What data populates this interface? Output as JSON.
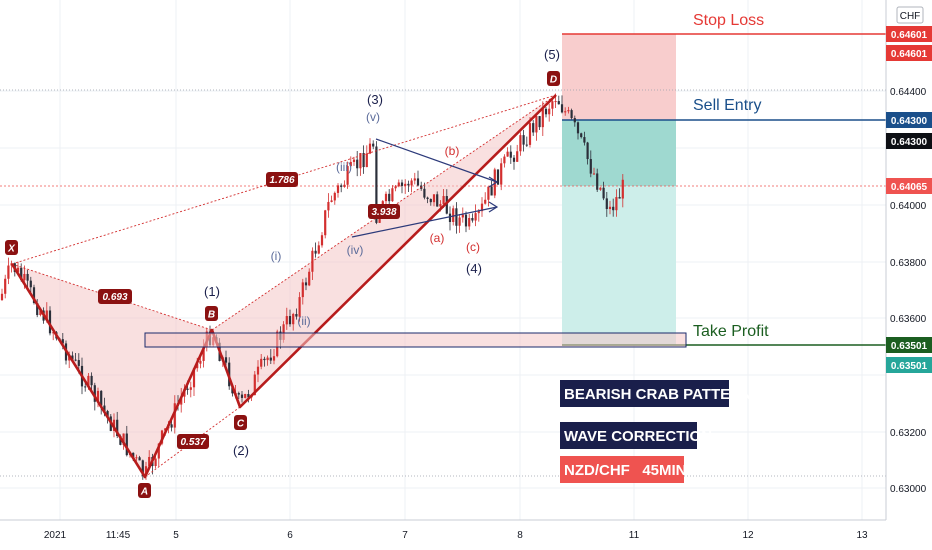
{
  "currency_badge": "CHF",
  "labels": {
    "stop_loss": "Stop Loss",
    "sell_entry": "Sell Entry",
    "take_profit": "Take Profit",
    "pattern_title": "BEARISH CRAB PATTERN",
    "wave_title": "WAVE CORRECTION",
    "symbol_title": "NZD/CHF   45MIN"
  },
  "colors": {
    "stop": "#e53935",
    "stop_zone": "#f8cdcd",
    "entry": "#1a4f8a",
    "profit_zone_dark": "#9fd9d0",
    "profit_zone_light": "#cdeeea",
    "profit": "#1b5e20",
    "pattern": "#b71c1c",
    "pattern_fill": "#f4c7c7",
    "navy": "#1a1f4b",
    "candle_dark": "#2b2f3a",
    "candle_red": "#d32f2f",
    "price_tag_current": "#ef5350",
    "price_tag_tp": "#26a69a"
  },
  "price_tags": {
    "stop": [
      "0.64601",
      "0.64601"
    ],
    "entry": [
      "0.64300",
      "0.64300"
    ],
    "current": "0.64065",
    "tp": [
      "0.63501",
      "0.63501"
    ]
  },
  "chart_data": {
    "type": "candlestick",
    "title": "NZD/CHF 45MIN",
    "y_ticks": [
      "0.64400",
      "0.64000",
      "0.63800",
      "0.63600",
      "0.63200",
      "0.63000"
    ],
    "x_ticks": [
      "2021",
      "11:45",
      "5",
      "6",
      "7",
      "8",
      "11",
      "12",
      "13"
    ],
    "ylim": [
      0.6287,
      0.6472
    ],
    "levels": {
      "stop_loss": 0.64601,
      "sell_entry": 0.643,
      "current": 0.64065,
      "take_profit": 0.63501
    },
    "pattern_points": [
      {
        "name": "X",
        "price": 0.6379
      },
      {
        "name": "A",
        "price": 0.6304
      },
      {
        "name": "B",
        "price": 0.6355
      },
      {
        "name": "C",
        "price": 0.6329
      },
      {
        "name": "D",
        "price": 0.6443
      }
    ],
    "fib_ratios": [
      "0.693",
      "0.537",
      "1.786",
      "3.938"
    ],
    "wave_labels": [
      "(1)",
      "(2)",
      "(3)",
      "(4)",
      "(5)",
      "(i)",
      "(ii)",
      "(iii)",
      "(iv)",
      "(v)",
      "(a)",
      "(b)",
      "(c)"
    ]
  }
}
